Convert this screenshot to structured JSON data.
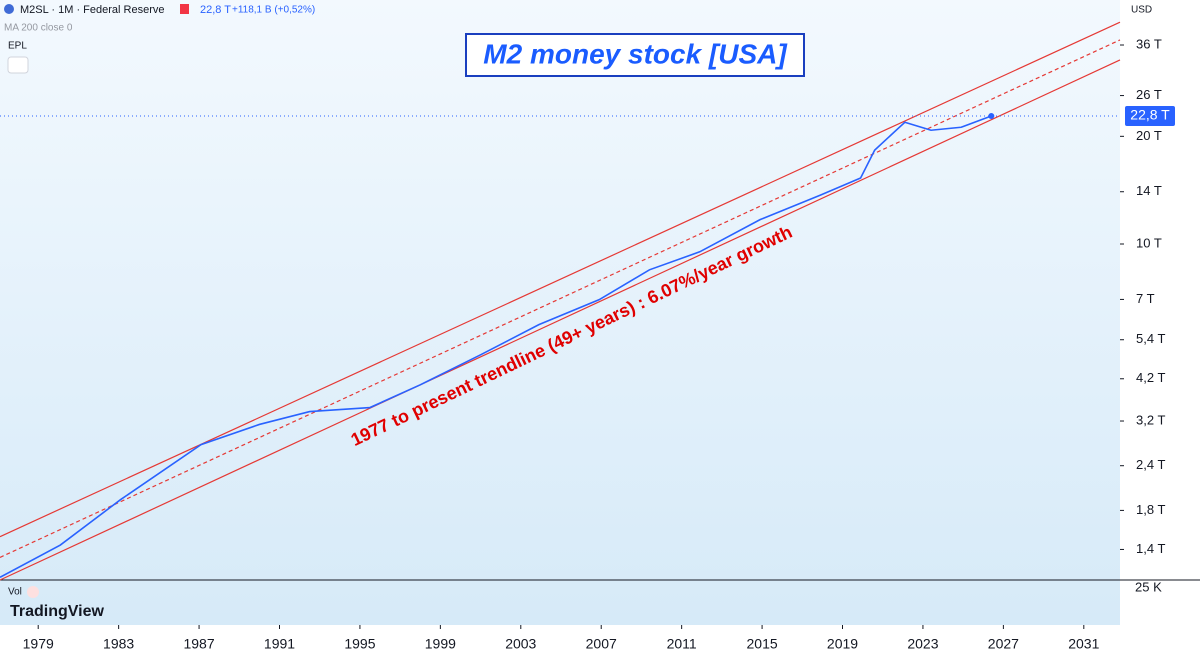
{
  "header": {
    "symbol": "M2SL · 1M · Federal Reserve",
    "last": "22,8 T",
    "change": "+118,1 B (+0,52%)",
    "indicator": "MA 200 close 0",
    "tag": "EPL",
    "currency": "USD"
  },
  "volume_pane": {
    "label": "Vol",
    "tick": "25 K"
  },
  "brand": "TradingView",
  "chart_data": {
    "type": "line",
    "title": "M2 money stock [USA]",
    "annotation": "1977 to present trendline (49+ years) : 6.07%/year growth",
    "log_scale": true,
    "xlim": [
      1977.1,
      2032.8
    ],
    "xticks": [
      1979,
      1983,
      1987,
      1991,
      1995,
      1999,
      2003,
      2007,
      2011,
      2015,
      2019,
      2023,
      2027,
      2031
    ],
    "ylim": [
      1.15,
      48.1
    ],
    "yticks": [
      {
        "value": 36,
        "label": "36 T"
      },
      {
        "value": 26,
        "label": "26 T"
      },
      {
        "value": 20,
        "label": "20 T"
      },
      {
        "value": 14,
        "label": "14 T"
      },
      {
        "value": 10,
        "label": "10 T"
      },
      {
        "value": 7,
        "label": "7 T"
      },
      {
        "value": 5.4,
        "label": "5,4 T"
      },
      {
        "value": 4.2,
        "label": "4,2 T"
      },
      {
        "value": 3.2,
        "label": "3,2 T"
      },
      {
        "value": 2.4,
        "label": "2,4 T"
      },
      {
        "value": 1.8,
        "label": "1,8 T"
      },
      {
        "value": 1.4,
        "label": "1,4 T"
      }
    ],
    "series": [
      {
        "name": "M2SL",
        "color": "#2962ff",
        "x": [
          1977.1,
          1980.1,
          1983.1,
          1987.1,
          1990.0,
          1992.5,
          1995.5,
          1998.0,
          2001.0,
          2003.9,
          2006.9,
          2009.4,
          2011.9,
          2014.9,
          2017.9,
          2019.9,
          2020.6,
          2022.1,
          2023.4,
          2024.9,
          2026.4
        ],
        "values": [
          1.17,
          1.44,
          1.93,
          2.75,
          3.13,
          3.4,
          3.49,
          4.04,
          4.9,
          5.95,
          6.99,
          8.47,
          9.51,
          11.7,
          13.7,
          15.3,
          18.3,
          21.9,
          20.8,
          21.2,
          22.8
        ],
        "value_labels": [
          null,
          null,
          null,
          null,
          null,
          null,
          null,
          null,
          null,
          null,
          null,
          null,
          null,
          null,
          null,
          null,
          null,
          null,
          null,
          null,
          "22,8 T"
        ]
      }
    ],
    "trendlines": [
      {
        "color": "#e53935",
        "x": [
          1977.1,
          2032.8
        ],
        "values": [
          1.52,
          41.7
        ]
      },
      {
        "color": "#e53935",
        "x": [
          1977.1,
          2032.8
        ],
        "values": [
          1.33,
          37.2
        ],
        "dashed": true
      },
      {
        "color": "#e53935",
        "x": [
          1977.1,
          2032.8
        ],
        "values": [
          1.15,
          32.7
        ]
      }
    ]
  }
}
